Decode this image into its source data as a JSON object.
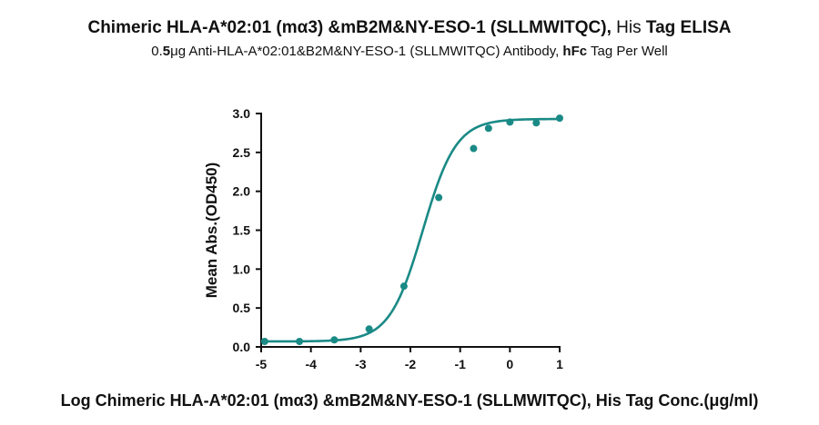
{
  "header": {
    "title_main": "Chimeric HLA-A*02:01 (mα3) &mB2M&NY-ESO-1 (SLLMWITQC),",
    "title_his": "His",
    "title_tail": "Tag ELISA",
    "subtitle_pre": "0.",
    "subtitle_bold1": "5",
    "subtitle_mid": "μg Anti-HLA-A*02:01&B2M&NY-ESO-1 (SLLMWITQC) Antibody, ",
    "subtitle_bold2": "hFc",
    "subtitle_post": " Tag Per Well"
  },
  "chart_data": {
    "type": "scatter",
    "xlabel": "Log Chimeric HLA-A*02:01 (mα3) &mB2M&NY-ESO-1 (SLLMWITQC), His Tag Conc.(μg/ml)",
    "ylabel": "Mean Abs.(OD450)",
    "xlim": [
      -5,
      1
    ],
    "ylim": [
      0,
      3.0
    ],
    "x_ticks": [
      -5,
      -4,
      -3,
      -2,
      -1,
      0,
      1
    ],
    "y_ticks": [
      0.0,
      0.5,
      1.0,
      1.5,
      2.0,
      2.5,
      3.0
    ],
    "x_tick_labels": [
      "-5",
      "-4",
      "-3",
      "-2",
      "-1",
      "0",
      "1"
    ],
    "y_tick_labels": [
      "0.0",
      "0.5",
      "1.0",
      "1.5",
      "2.0",
      "2.5",
      "3.0"
    ],
    "grid": false,
    "series": [
      {
        "x": [
          -4.93,
          -4.23,
          -3.53,
          -2.83,
          -2.13,
          -1.43,
          -0.73,
          -0.43,
          0.0,
          0.53,
          1.0
        ],
        "y": [
          0.07,
          0.07,
          0.09,
          0.23,
          0.78,
          1.92,
          2.55,
          2.81,
          2.89,
          2.88,
          2.94
        ]
      }
    ],
    "fit_curve": {
      "type": "4PL",
      "bottom": 0.07,
      "top": 2.93,
      "ec50_log": -1.75,
      "hill_slope": 1.3
    },
    "color": "#1a8a86"
  }
}
